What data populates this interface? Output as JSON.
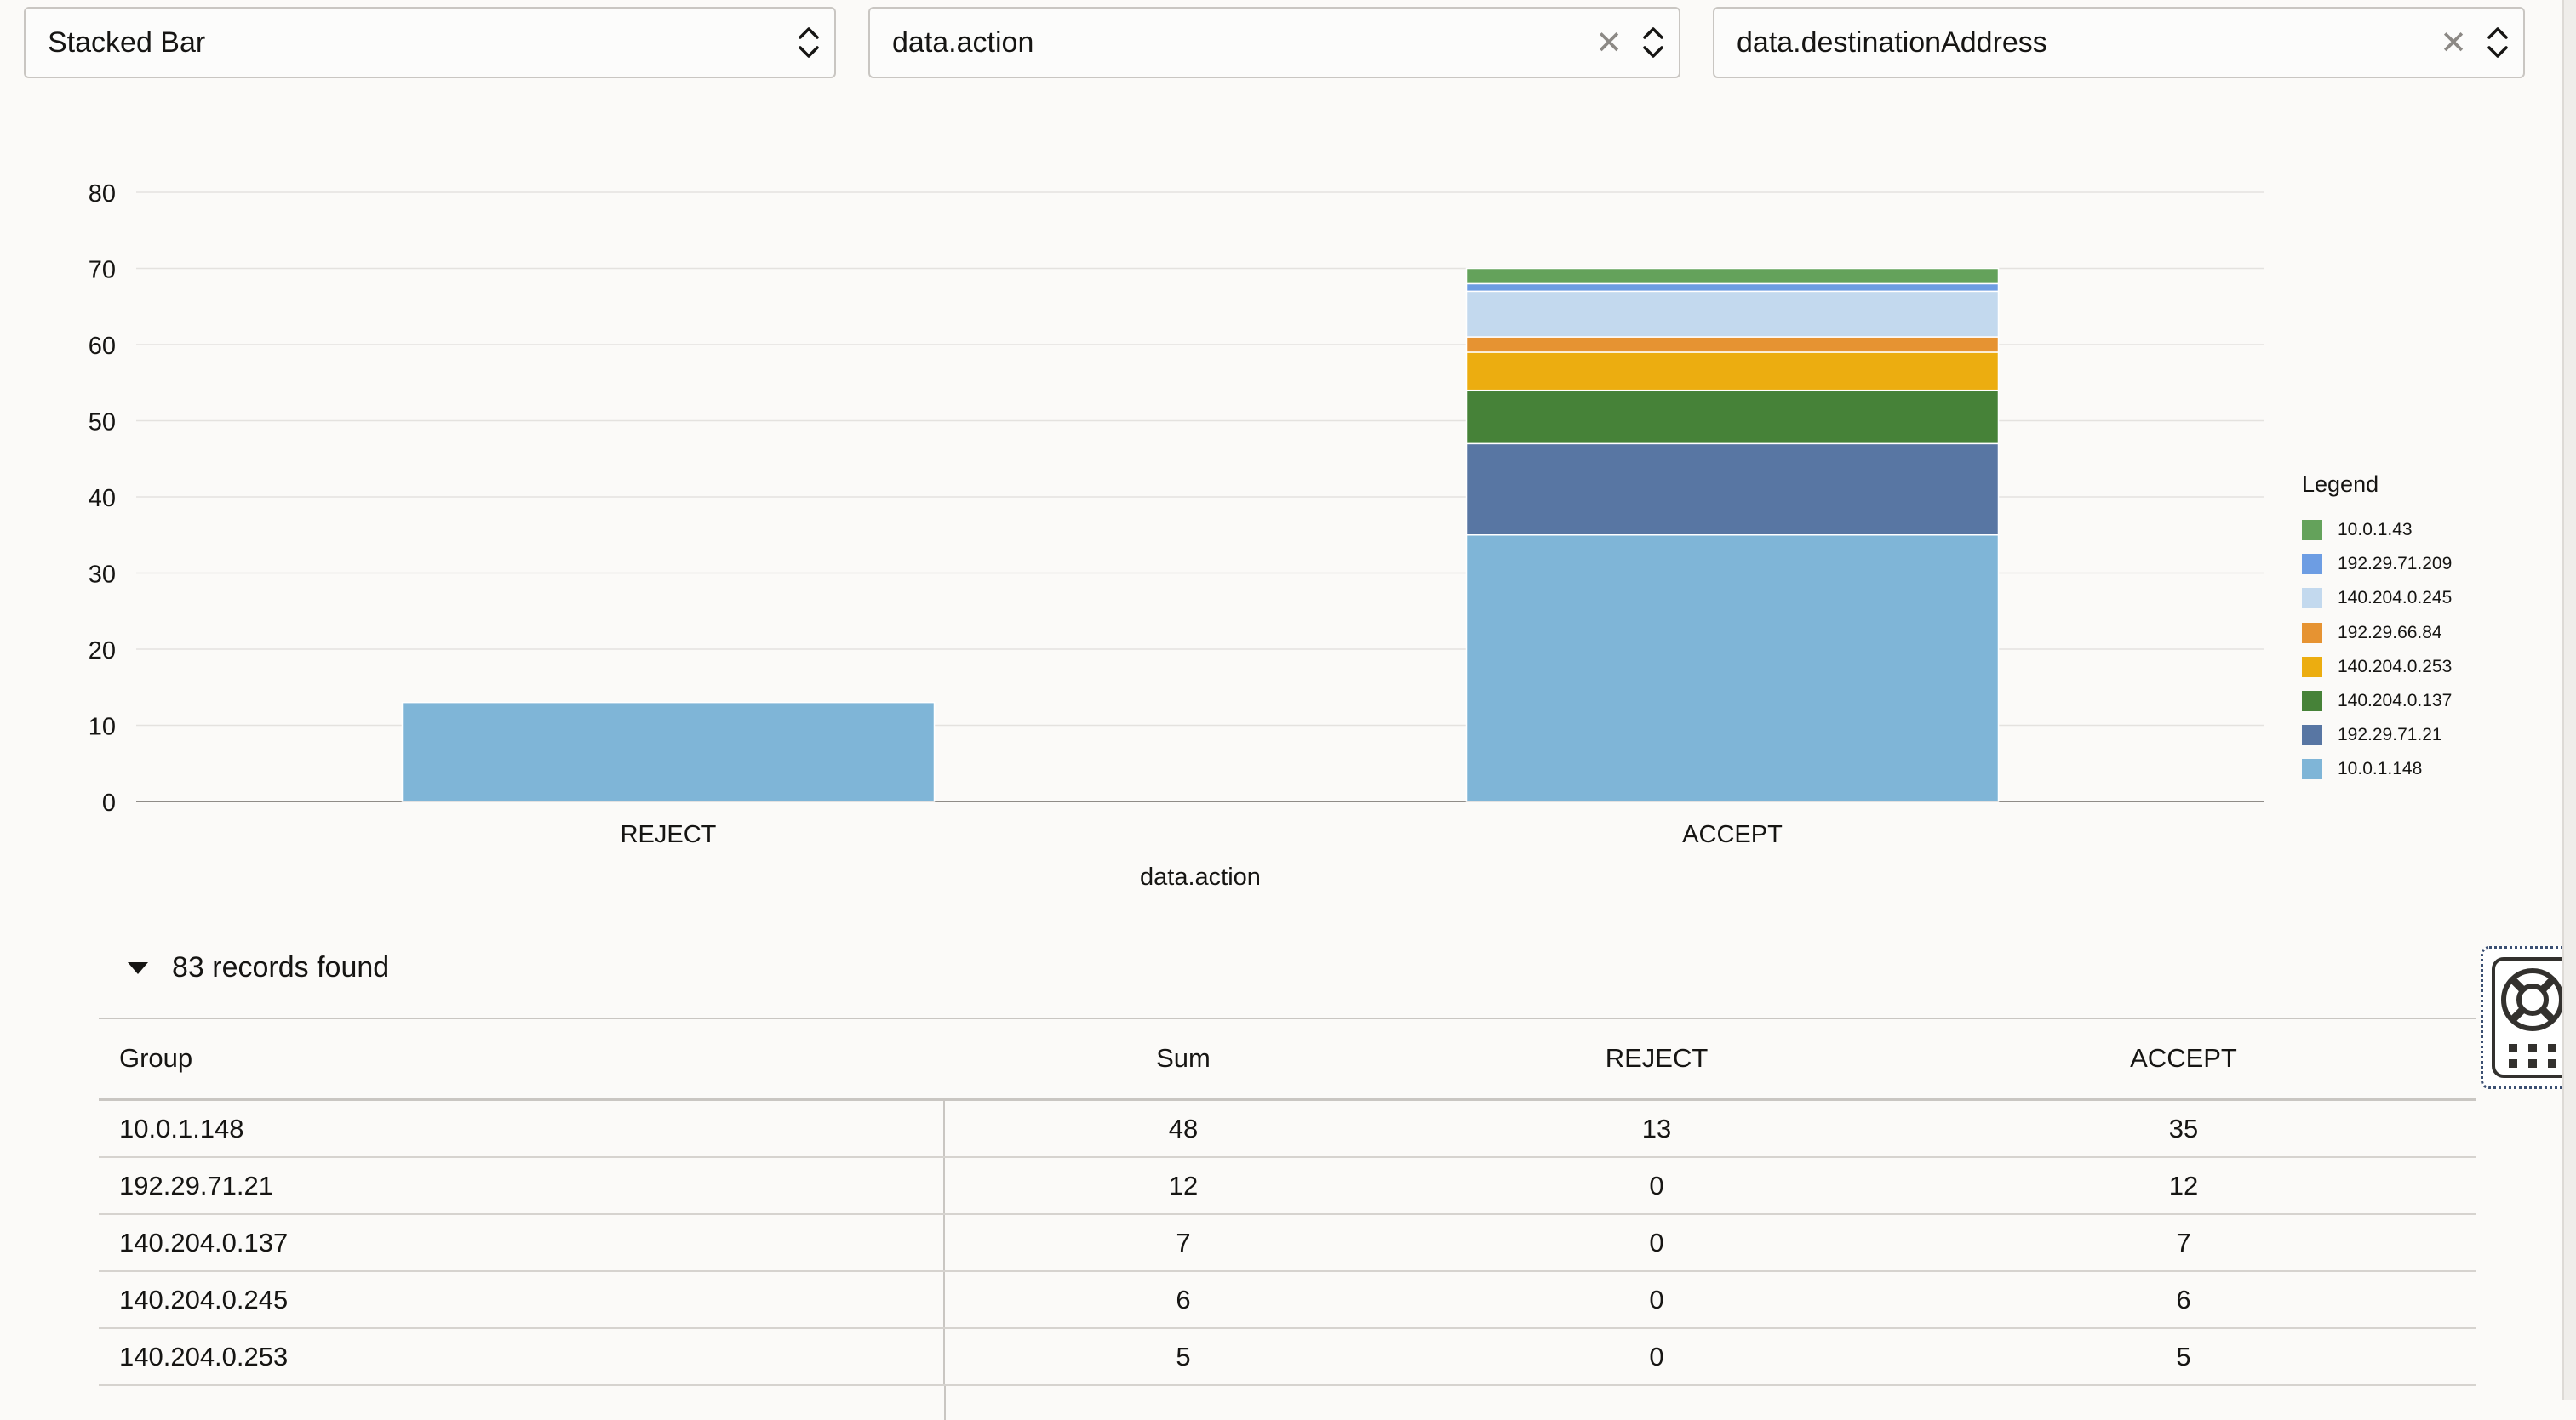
{
  "controls": {
    "chart_type": {
      "value": "Stacked Bar"
    },
    "x_field": {
      "value": "data.action"
    },
    "group_field": {
      "value": "data.destinationAddress"
    },
    "clear_glyph": "✕"
  },
  "colors": {
    "10.0.1.43": "#64a25b",
    "192.29.71.209": "#6d9de3",
    "140.204.0.245": "#c3d9ee",
    "192.29.66.84": "#e69332",
    "140.204.0.253": "#ecad10",
    "140.204.0.137": "#468238",
    "192.29.71.21": "#5876a3",
    "10.0.1.148": "#7fb5d7"
  },
  "chart_data": {
    "type": "bar",
    "stacked": true,
    "categories": [
      "REJECT",
      "ACCEPT"
    ],
    "xlabel": "data.action",
    "ylabel": "",
    "ylim": [
      0,
      80
    ],
    "yticks": [
      0,
      10,
      20,
      30,
      40,
      50,
      60,
      70,
      80
    ],
    "grid": true,
    "legend_title": "Legend",
    "legend_position": "right",
    "series": [
      {
        "name": "10.0.1.148",
        "values": [
          13,
          35
        ]
      },
      {
        "name": "192.29.71.21",
        "values": [
          0,
          12
        ]
      },
      {
        "name": "140.204.0.137",
        "values": [
          0,
          7
        ]
      },
      {
        "name": "140.204.0.253",
        "values": [
          0,
          5
        ]
      },
      {
        "name": "192.29.66.84",
        "values": [
          0,
          2
        ]
      },
      {
        "name": "140.204.0.245",
        "values": [
          0,
          6
        ]
      },
      {
        "name": "192.29.71.209",
        "values": [
          0,
          1
        ]
      },
      {
        "name": "10.0.1.43",
        "values": [
          0,
          2
        ]
      }
    ]
  },
  "records": {
    "label": "83 records found"
  },
  "table": {
    "headers": [
      "Group",
      "Sum",
      "REJECT",
      "ACCEPT"
    ],
    "rows": [
      [
        "10.0.1.148",
        "48",
        "13",
        "35"
      ],
      [
        "192.29.71.21",
        "12",
        "0",
        "12"
      ],
      [
        "140.204.0.137",
        "7",
        "0",
        "7"
      ],
      [
        "140.204.0.245",
        "6",
        "0",
        "6"
      ],
      [
        "140.204.0.253",
        "5",
        "0",
        "5"
      ]
    ]
  }
}
